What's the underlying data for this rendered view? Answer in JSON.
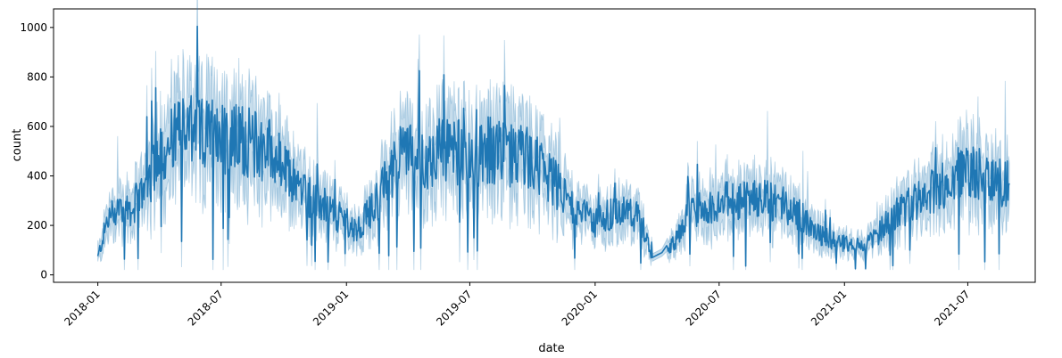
{
  "chart_data": {
    "type": "line",
    "xlabel": "date",
    "ylabel": "count",
    "grid": false,
    "xlim": [
      "2017-10-28",
      "2021-10-08"
    ],
    "ylim": [
      -30,
      1075
    ],
    "x_ticks": [
      "2018-01",
      "2018-07",
      "2019-01",
      "2019-07",
      "2020-01",
      "2020-07",
      "2021-01",
      "2021-07"
    ],
    "y_ticks": [
      0,
      200,
      400,
      600,
      800,
      1000
    ],
    "colors": {
      "line": "#1f77b4",
      "band": "#1f77b4"
    },
    "series": [
      {
        "points": [
          [
            "2018-01-01",
            70
          ],
          [
            "2018-01-15",
            220
          ],
          [
            "2018-02-01",
            280
          ],
          [
            "2018-02-15",
            260
          ],
          [
            "2018-03-01",
            300
          ],
          [
            "2018-03-15",
            380
          ],
          [
            "2018-04-01",
            470
          ],
          [
            "2018-04-15",
            540
          ],
          [
            "2018-05-01",
            560
          ],
          [
            "2018-05-15",
            570
          ],
          [
            "2018-06-01",
            560
          ],
          [
            "2018-06-15",
            570
          ],
          [
            "2018-07-01",
            560
          ],
          [
            "2018-07-15",
            540
          ],
          [
            "2018-08-01",
            550
          ],
          [
            "2018-08-15",
            530
          ],
          [
            "2018-09-01",
            520
          ],
          [
            "2018-09-15",
            500
          ],
          [
            "2018-10-01",
            420
          ],
          [
            "2018-10-15",
            380
          ],
          [
            "2018-11-01",
            330
          ],
          [
            "2018-11-15",
            300
          ],
          [
            "2018-12-01",
            280
          ],
          [
            "2018-12-15",
            240
          ],
          [
            "2019-01-01",
            220
          ],
          [
            "2019-01-15",
            180
          ],
          [
            "2019-02-01",
            240
          ],
          [
            "2019-02-15",
            300
          ],
          [
            "2019-03-01",
            380
          ],
          [
            "2019-03-15",
            460
          ],
          [
            "2019-04-01",
            500
          ],
          [
            "2019-04-15",
            470
          ],
          [
            "2019-05-01",
            480
          ],
          [
            "2019-05-15",
            500
          ],
          [
            "2019-06-01",
            490
          ],
          [
            "2019-06-15",
            500
          ],
          [
            "2019-07-01",
            470
          ],
          [
            "2019-07-15",
            480
          ],
          [
            "2019-08-01",
            470
          ],
          [
            "2019-08-15",
            490
          ],
          [
            "2019-09-01",
            480
          ],
          [
            "2019-09-15",
            490
          ],
          [
            "2019-10-01",
            460
          ],
          [
            "2019-10-15",
            430
          ],
          [
            "2019-11-01",
            380
          ],
          [
            "2019-11-15",
            330
          ],
          [
            "2019-12-01",
            280
          ],
          [
            "2019-12-15",
            240
          ],
          [
            "2020-01-01",
            210
          ],
          [
            "2020-01-15",
            240
          ],
          [
            "2020-02-01",
            260
          ],
          [
            "2020-02-15",
            250
          ],
          [
            "2020-03-01",
            240
          ],
          [
            "2020-03-15",
            170
          ],
          [
            "2020-03-25",
            70
          ],
          [
            "2020-04-15",
            100
          ],
          [
            "2020-05-01",
            150
          ],
          [
            "2020-05-15",
            230
          ],
          [
            "2020-06-01",
            260
          ],
          [
            "2020-06-15",
            280
          ],
          [
            "2020-07-01",
            290
          ],
          [
            "2020-07-15",
            300
          ],
          [
            "2020-08-01",
            300
          ],
          [
            "2020-08-15",
            310
          ],
          [
            "2020-09-01",
            300
          ],
          [
            "2020-09-15",
            300
          ],
          [
            "2020-10-01",
            290
          ],
          [
            "2020-10-15",
            270
          ],
          [
            "2020-11-01",
            230
          ],
          [
            "2020-11-15",
            180
          ],
          [
            "2020-12-01",
            160
          ],
          [
            "2020-12-15",
            140
          ],
          [
            "2021-01-01",
            130
          ],
          [
            "2021-01-15",
            120
          ],
          [
            "2021-02-01",
            130
          ],
          [
            "2021-02-15",
            150
          ],
          [
            "2021-03-01",
            200
          ],
          [
            "2021-03-15",
            250
          ],
          [
            "2021-04-01",
            270
          ],
          [
            "2021-04-15",
            290
          ],
          [
            "2021-05-01",
            320
          ],
          [
            "2021-05-15",
            350
          ],
          [
            "2021-06-01",
            370
          ],
          [
            "2021-06-15",
            400
          ],
          [
            "2021-07-01",
            430
          ],
          [
            "2021-07-15",
            420
          ],
          [
            "2021-08-01",
            380
          ],
          [
            "2021-08-15",
            370
          ],
          [
            "2021-08-31",
            370
          ]
        ]
      }
    ]
  }
}
